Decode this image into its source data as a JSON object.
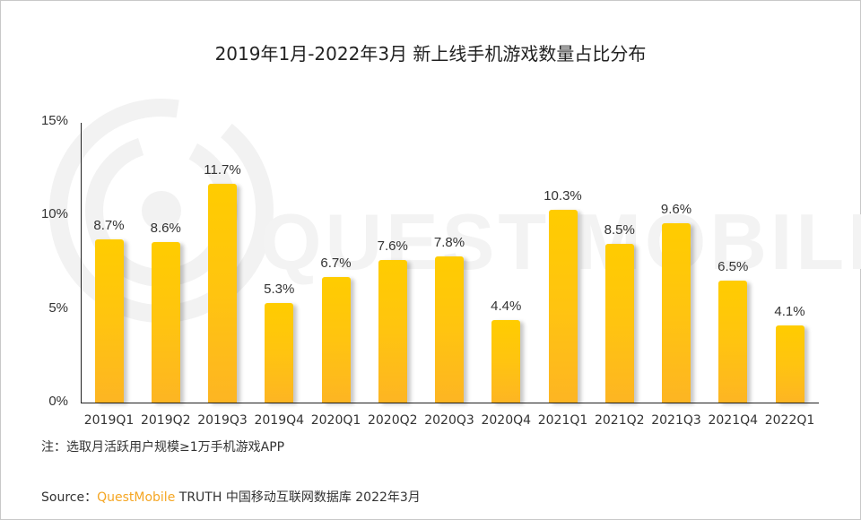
{
  "title": "2019年1月-2022年3月 新上线手机游戏数量占比分布",
  "watermark": "QUEST MOBILE",
  "note": "注：选取月活跃用户规模≥1万手机游戏APP",
  "source": {
    "prefix": "Source：",
    "brand": "QuestMobile",
    "rest": " TRUTH 中国移动互联网数据库 2022年3月"
  },
  "colors": {
    "bar_top": "#ffcc00",
    "bar_bottom": "#fdb523",
    "brand": "#f5a623",
    "axis": "#222222"
  },
  "chart_data": {
    "type": "bar",
    "title": "2019年1月-2022年3月 新上线手机游戏数量占比分布",
    "xlabel": "",
    "ylabel": "",
    "ylim": [
      0,
      15
    ],
    "yticks": [
      "0%",
      "5%",
      "10%",
      "15%"
    ],
    "grid": false,
    "legend": null,
    "categories": [
      "2019Q1",
      "2019Q2",
      "2019Q3",
      "2019Q4",
      "2020Q1",
      "2020Q2",
      "2020Q3",
      "2020Q4",
      "2021Q1",
      "2021Q2",
      "2021Q3",
      "2021Q4",
      "2022Q1"
    ],
    "values": [
      8.7,
      8.6,
      11.7,
      5.3,
      6.7,
      7.6,
      7.8,
      4.4,
      10.3,
      8.5,
      9.6,
      6.5,
      4.1
    ],
    "labels": [
      "8.7%",
      "8.6%",
      "11.7%",
      "5.3%",
      "6.7%",
      "7.6%",
      "7.8%",
      "4.4%",
      "10.3%",
      "8.5%",
      "9.6%",
      "6.5%",
      "4.1%"
    ]
  }
}
